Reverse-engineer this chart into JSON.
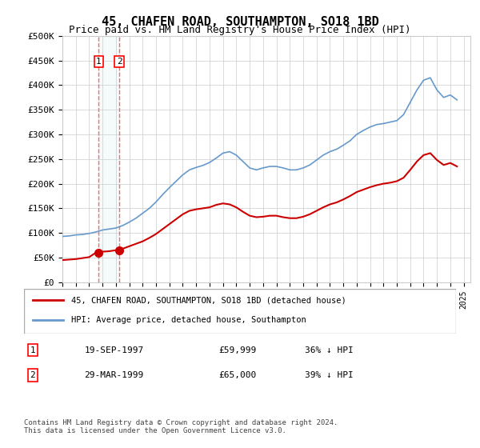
{
  "title": "45, CHAFEN ROAD, SOUTHAMPTON, SO18 1BD",
  "subtitle": "Price paid vs. HM Land Registry's House Price Index (HPI)",
  "hpi_color": "#6699cc",
  "price_color": "#cc0000",
  "annotation_color": "#cc0000",
  "vline_color": "#ff6666",
  "background_color": "#ffffff",
  "plot_bg_color": "#ffffff",
  "grid_color": "#cccccc",
  "ylim": [
    0,
    500000
  ],
  "yticks": [
    0,
    50000,
    100000,
    150000,
    200000,
    250000,
    300000,
    350000,
    400000,
    450000,
    500000
  ],
  "ytick_labels": [
    "£0",
    "£50K",
    "£100K",
    "£150K",
    "£200K",
    "£250K",
    "£300K",
    "£350K",
    "£400K",
    "£450K",
    "£500K"
  ],
  "xlim_start": 1995.0,
  "xlim_end": 2025.5,
  "legend_label_price": "45, CHAFEN ROAD, SOUTHAMPTON, SO18 1BD (detached house)",
  "legend_label_hpi": "HPI: Average price, detached house, Southampton",
  "sale1_x": 1997.72,
  "sale1_y": 59999,
  "sale1_label": "1",
  "sale2_x": 1999.25,
  "sale2_y": 65000,
  "sale2_label": "2",
  "annotation1_date": "19-SEP-1997",
  "annotation1_price": "£59,999",
  "annotation1_hpi": "36% ↓ HPI",
  "annotation2_date": "29-MAR-1999",
  "annotation2_price": "£65,000",
  "annotation2_hpi": "39% ↓ HPI",
  "footer": "Contains HM Land Registry data © Crown copyright and database right 2024.\nThis data is licensed under the Open Government Licence v3.0.",
  "hpi_years": [
    1995,
    1995.5,
    1996,
    1996.5,
    1997,
    1997.5,
    1998,
    1998.5,
    1999,
    1999.5,
    2000,
    2000.5,
    2001,
    2001.5,
    2002,
    2002.5,
    2003,
    2003.5,
    2004,
    2004.5,
    2005,
    2005.5,
    2006,
    2006.5,
    2007,
    2007.5,
    2008,
    2008.5,
    2009,
    2009.5,
    2010,
    2010.5,
    2011,
    2011.5,
    2012,
    2012.5,
    2013,
    2013.5,
    2014,
    2014.5,
    2015,
    2015.5,
    2016,
    2016.5,
    2017,
    2017.5,
    2018,
    2018.5,
    2019,
    2019.5,
    2020,
    2020.5,
    2021,
    2021.5,
    2022,
    2022.5,
    2023,
    2023.5,
    2024,
    2024.5
  ],
  "hpi_values": [
    93000,
    94000,
    96000,
    97000,
    99000,
    102000,
    106000,
    108000,
    110000,
    115000,
    122000,
    130000,
    140000,
    150000,
    163000,
    178000,
    192000,
    205000,
    218000,
    228000,
    233000,
    237000,
    243000,
    252000,
    262000,
    265000,
    258000,
    245000,
    232000,
    228000,
    232000,
    235000,
    235000,
    232000,
    228000,
    228000,
    232000,
    238000,
    248000,
    258000,
    265000,
    270000,
    278000,
    287000,
    300000,
    308000,
    315000,
    320000,
    322000,
    325000,
    328000,
    340000,
    365000,
    390000,
    410000,
    415000,
    390000,
    375000,
    380000,
    370000
  ],
  "price_years": [
    1995,
    1995.5,
    1996,
    1996.5,
    1997,
    1997.5,
    1998,
    1998.5,
    1999,
    1999.5,
    2000,
    2000.5,
    2001,
    2001.5,
    2002,
    2002.5,
    2003,
    2003.5,
    2004,
    2004.5,
    2005,
    2005.5,
    2006,
    2006.5,
    2007,
    2007.5,
    2008,
    2008.5,
    2009,
    2009.5,
    2010,
    2010.5,
    2011,
    2011.5,
    2012,
    2012.5,
    2013,
    2013.5,
    2014,
    2014.5,
    2015,
    2015.5,
    2016,
    2016.5,
    2017,
    2017.5,
    2018,
    2018.5,
    2019,
    2019.5,
    2020,
    2020.5,
    2021,
    2021.5,
    2022,
    2022.5,
    2023,
    2023.5,
    2024,
    2024.5
  ],
  "price_values": [
    45000,
    46000,
    47000,
    49000,
    51000,
    60000,
    62000,
    63000,
    65000,
    68000,
    73000,
    78000,
    83000,
    90000,
    98000,
    108000,
    118000,
    128000,
    138000,
    145000,
    148000,
    150000,
    152000,
    157000,
    160000,
    158000,
    152000,
    143000,
    135000,
    132000,
    133000,
    135000,
    135000,
    132000,
    130000,
    130000,
    133000,
    138000,
    145000,
    152000,
    158000,
    162000,
    168000,
    175000,
    183000,
    188000,
    193000,
    197000,
    200000,
    202000,
    205000,
    212000,
    228000,
    245000,
    258000,
    262000,
    248000,
    238000,
    242000,
    235000
  ]
}
